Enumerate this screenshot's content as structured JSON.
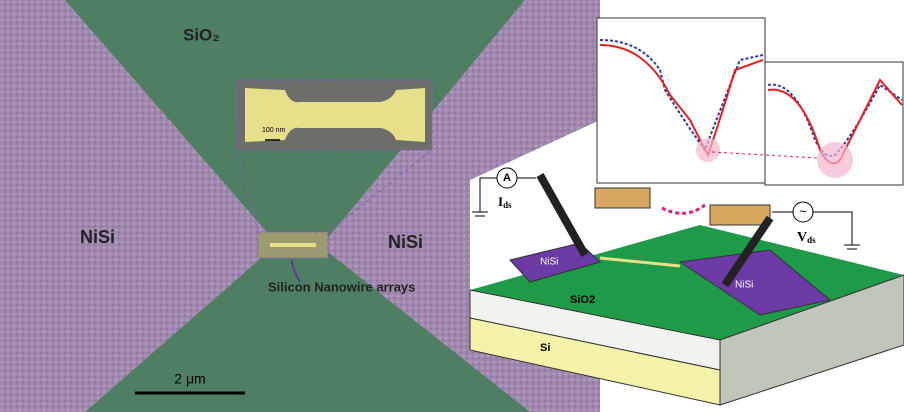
{
  "sem": {
    "oxide_label": "SiO₂",
    "left_contact": "NiSi",
    "right_contact": "NiSi",
    "inset_scale": "100 nm",
    "nanowire_label": "Silicon Nanowire arrays",
    "scale_bar": "2 μm"
  },
  "schematic": {
    "ammeter": "A",
    "current_label": "I",
    "current_sub": "ds",
    "voltage_label": "V",
    "voltage_sub": "ds",
    "source_symbol": "~",
    "left_pad": "NiSi",
    "right_pad": "NiSi",
    "oxide_layer": "SiO2",
    "substrate": "Si"
  }
}
